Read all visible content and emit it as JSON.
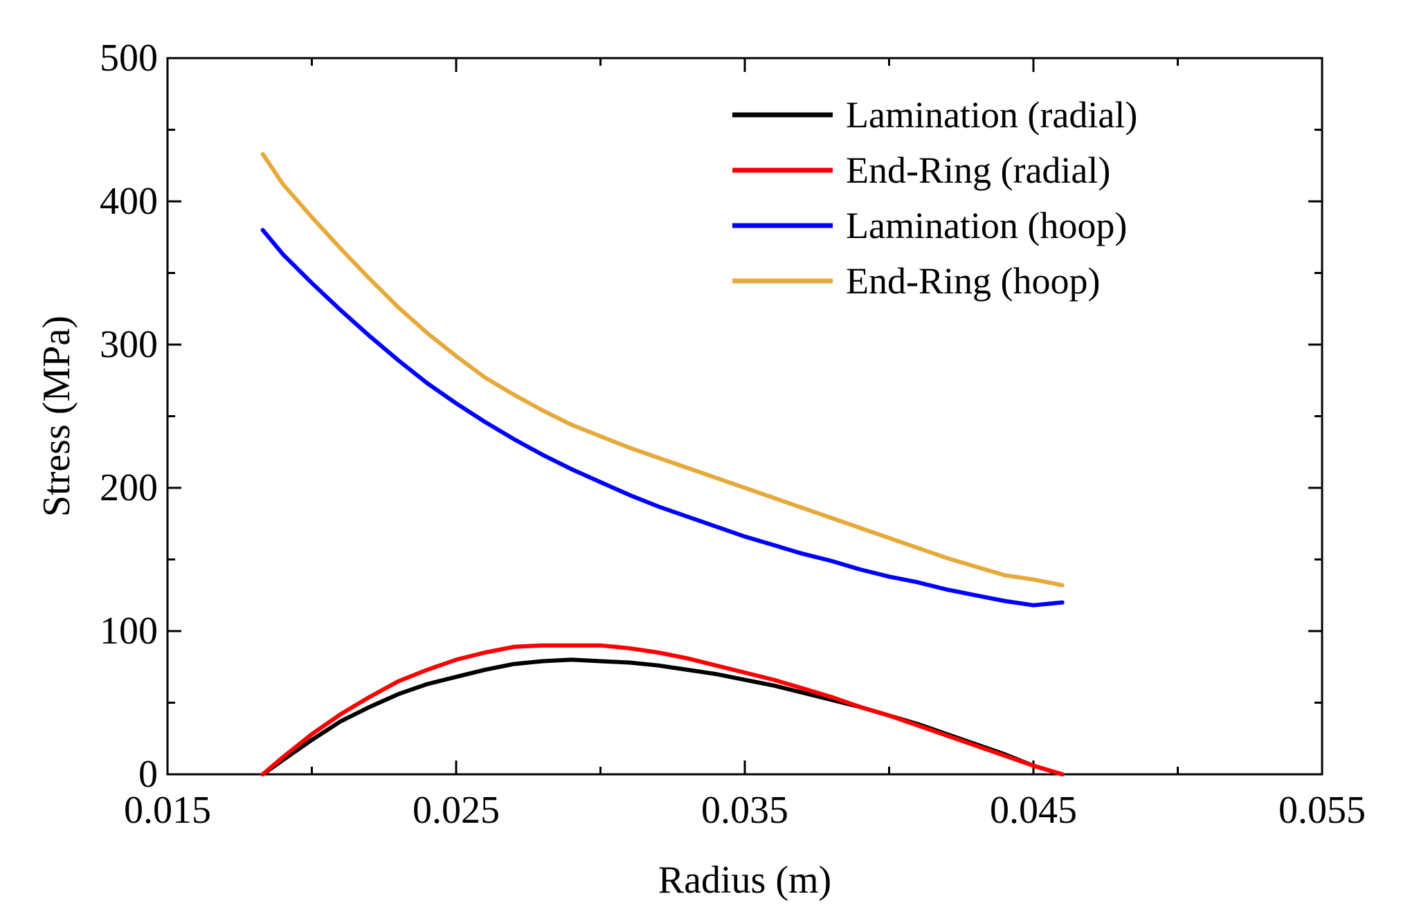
{
  "chart_data": {
    "type": "line",
    "title": "",
    "xlabel": "Radius (m)",
    "ylabel": "Stress (MPa)",
    "xlim": [
      0.015,
      0.055
    ],
    "ylim": [
      0,
      500
    ],
    "xticks": [
      0.015,
      0.025,
      0.035,
      0.045,
      0.055
    ],
    "xtick_labels": [
      "0.015",
      "0.025",
      "0.035",
      "0.045",
      "0.055"
    ],
    "yticks": [
      0,
      100,
      200,
      300,
      400,
      500
    ],
    "ytick_labels": [
      "0",
      "100",
      "200",
      "300",
      "400",
      "500"
    ],
    "grid": false,
    "legend_position": "top-right",
    "series": [
      {
        "name": "Lamination (radial)",
        "color": "#000000",
        "x": [
          0.0183,
          0.019,
          0.02,
          0.021,
          0.022,
          0.023,
          0.024,
          0.025,
          0.026,
          0.027,
          0.028,
          0.029,
          0.03,
          0.031,
          0.032,
          0.033,
          0.034,
          0.035,
          0.036,
          0.037,
          0.038,
          0.039,
          0.04,
          0.041,
          0.042,
          0.043,
          0.044,
          0.045,
          0.046
        ],
        "y": [
          0,
          10,
          24,
          37,
          47,
          56,
          63,
          68,
          73,
          77,
          79,
          80,
          79,
          78,
          76,
          73,
          70,
          66,
          62,
          57,
          52,
          47,
          41,
          35,
          28,
          21,
          14,
          6,
          0
        ]
      },
      {
        "name": "End-Ring (radial)",
        "color": "#ff0000",
        "x": [
          0.0183,
          0.019,
          0.02,
          0.021,
          0.022,
          0.023,
          0.024,
          0.025,
          0.026,
          0.027,
          0.028,
          0.029,
          0.03,
          0.031,
          0.032,
          0.033,
          0.034,
          0.035,
          0.036,
          0.037,
          0.038,
          0.039,
          0.04,
          0.041,
          0.042,
          0.043,
          0.044,
          0.045,
          0.046
        ],
        "y": [
          0,
          12,
          28,
          42,
          54,
          65,
          73,
          80,
          85,
          89,
          90,
          90,
          90,
          88,
          85,
          81,
          76,
          71,
          66,
          60,
          54,
          47,
          41,
          34,
          27,
          20,
          13,
          6,
          0
        ]
      },
      {
        "name": "Lamination (hoop)",
        "color": "#0000ff",
        "x": [
          0.0183,
          0.019,
          0.02,
          0.021,
          0.022,
          0.023,
          0.024,
          0.025,
          0.026,
          0.027,
          0.028,
          0.029,
          0.03,
          0.031,
          0.032,
          0.033,
          0.034,
          0.035,
          0.036,
          0.037,
          0.038,
          0.039,
          0.04,
          0.041,
          0.042,
          0.043,
          0.044,
          0.045,
          0.046
        ],
        "y": [
          380,
          363,
          343,
          324,
          306,
          289,
          273,
          259,
          246,
          234,
          223,
          213,
          204,
          195,
          187,
          180,
          173,
          166,
          160,
          154,
          149,
          143,
          138,
          134,
          129,
          125,
          121,
          118,
          120
        ]
      },
      {
        "name": "End-Ring (hoop)",
        "color": "#e6a93b",
        "x": [
          0.0183,
          0.019,
          0.02,
          0.021,
          0.022,
          0.023,
          0.024,
          0.025,
          0.026,
          0.027,
          0.028,
          0.029,
          0.03,
          0.031,
          0.032,
          0.033,
          0.034,
          0.035,
          0.036,
          0.037,
          0.038,
          0.039,
          0.04,
          0.041,
          0.042,
          0.043,
          0.044,
          0.045,
          0.046
        ],
        "y": [
          433,
          412,
          389,
          367,
          346,
          326,
          308,
          292,
          277,
          265,
          254,
          244,
          236,
          228,
          221,
          214,
          207,
          200,
          193,
          186,
          179,
          172,
          165,
          158,
          151,
          145,
          139,
          136,
          132
        ]
      }
    ]
  }
}
